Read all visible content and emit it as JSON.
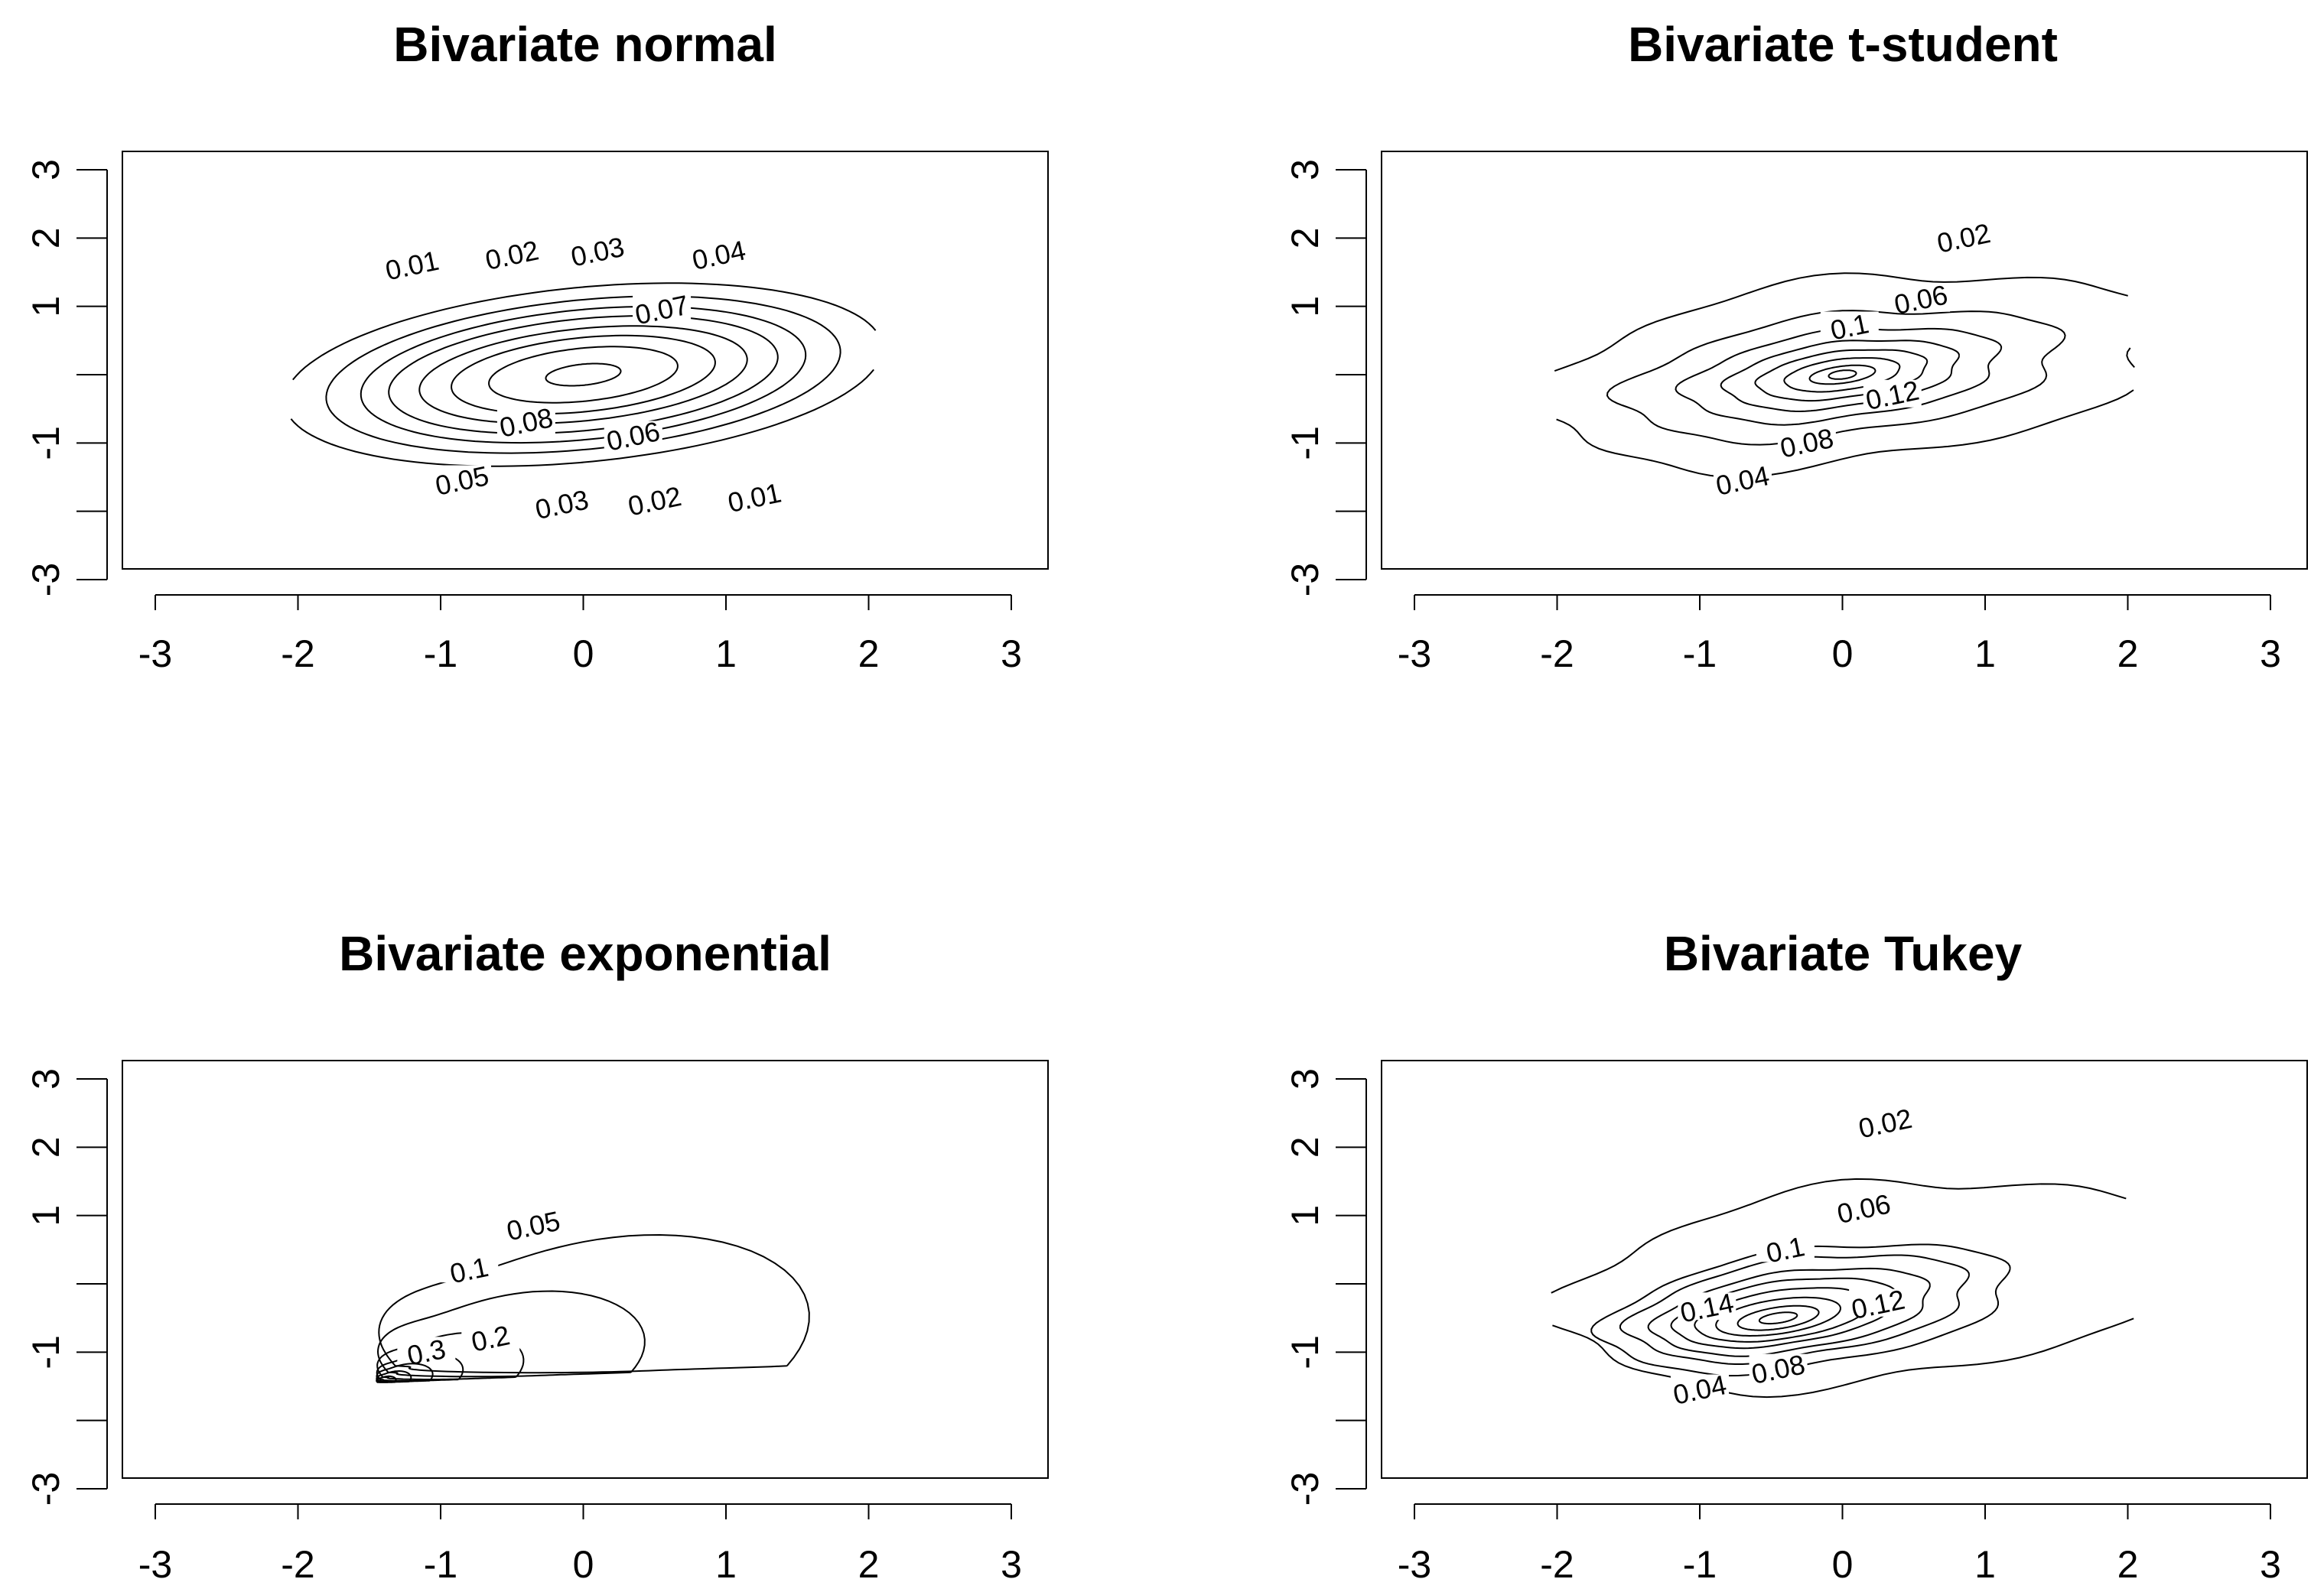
{
  "chart_data": [
    {
      "type": "contour",
      "title": "Bivariate normal",
      "xlim": [
        -3,
        3
      ],
      "ylim": [
        -3,
        3
      ],
      "xticks": [
        -3,
        -2,
        -1,
        0,
        1,
        2,
        3
      ],
      "xtick_labels": [
        "-3",
        "-2",
        "-1",
        "0",
        "1",
        "2",
        "3"
      ],
      "yticks": [
        -3,
        -2,
        -1,
        0,
        1,
        2,
        3
      ],
      "ytick_labels": [
        "-3",
        "",
        "-1",
        "",
        "1",
        "2",
        "3"
      ],
      "contours": [
        {
          "level": "0.01",
          "cx": 0.0,
          "cy": 0.0,
          "rx": 2.15,
          "ry": 1.25,
          "tilt": 0.28,
          "label_x": -1.2,
          "label_y": 1.6
        },
        {
          "level": "0.02",
          "cx": 0.0,
          "cy": 0.0,
          "rx": 1.85,
          "ry": 1.07,
          "tilt": 0.28,
          "label_x": -0.5,
          "label_y": 1.75
        },
        {
          "level": "0.03",
          "cx": 0.0,
          "cy": 0.0,
          "rx": 1.6,
          "ry": 0.93,
          "tilt": 0.28,
          "label_x": 0.1,
          "label_y": 1.8
        },
        {
          "level": "0.04",
          "cx": 0.0,
          "cy": 0.0,
          "rx": 1.4,
          "ry": 0.8,
          "tilt": 0.28,
          "label_x": 0.95,
          "label_y": 1.75
        },
        {
          "level": "0.05",
          "cx": 0.0,
          "cy": 0.0,
          "rx": 1.18,
          "ry": 0.66,
          "tilt": 0.28,
          "label_x": -0.85,
          "label_y": -1.55
        },
        {
          "level": "0.06",
          "cx": 0.0,
          "cy": 0.0,
          "rx": 0.95,
          "ry": 0.53,
          "tilt": 0.28,
          "label_x": 0.35,
          "label_y": -0.9
        },
        {
          "level": "0.07",
          "cx": 0.0,
          "cy": 0.0,
          "rx": 0.68,
          "ry": 0.38,
          "tilt": 0.28,
          "label_x": 0.55,
          "label_y": 0.95
        },
        {
          "level": "0.08",
          "cx": 0.0,
          "cy": 0.0,
          "rx": 0.27,
          "ry": 0.15,
          "tilt": 0.28,
          "label_x": -0.4,
          "label_y": -0.7
        }
      ],
      "extra_labels": [
        {
          "text": "0.03",
          "x": -0.15,
          "y": -1.9
        },
        {
          "text": "0.02",
          "x": 0.5,
          "y": -1.85
        },
        {
          "text": "0.01",
          "x": 1.2,
          "y": -1.8
        }
      ]
    },
    {
      "type": "contour",
      "title": "Bivariate t-student",
      "xlim": [
        -3,
        3
      ],
      "ylim": [
        -3,
        3
      ],
      "xticks": [
        -3,
        -2,
        -1,
        0,
        1,
        2,
        3
      ],
      "xtick_labels": [
        "-3",
        "-2",
        "-1",
        "0",
        "1",
        "2",
        "3"
      ],
      "yticks": [
        -3,
        -2,
        -1,
        0,
        1,
        2,
        3
      ],
      "ytick_labels": [
        "-3",
        "",
        "-1",
        "",
        "1",
        "2",
        "3"
      ],
      "contours": [
        {
          "level": "0.02",
          "cx": 0.05,
          "cy": 0.05,
          "rx": 2.25,
          "ry": 1.3,
          "tilt": 0.33,
          "wobble": 0.06,
          "label_x": 0.85,
          "label_y": 2.0
        },
        {
          "level": "0.04",
          "cx": 0.0,
          "cy": 0.0,
          "rx": 1.6,
          "ry": 0.85,
          "tilt": 0.33,
          "wobble": 0.05,
          "label_x": -0.7,
          "label_y": -1.55
        },
        {
          "level": "0.06",
          "cx": 0.0,
          "cy": 0.0,
          "rx": 1.15,
          "ry": 0.62,
          "tilt": 0.33,
          "wobble": 0.04,
          "label_x": 0.55,
          "label_y": 1.1
        },
        {
          "level": "0.08",
          "cx": 0.0,
          "cy": 0.0,
          "rx": 0.85,
          "ry": 0.46,
          "tilt": 0.33,
          "wobble": 0.03,
          "label_x": -0.25,
          "label_y": -1.0
        },
        {
          "level": "0.1",
          "cx": 0.0,
          "cy": 0.0,
          "rx": 0.62,
          "ry": 0.33,
          "tilt": 0.33,
          "wobble": 0.02,
          "label_x": 0.05,
          "label_y": 0.7
        },
        {
          "level": "0.12",
          "cx": 0.0,
          "cy": 0.0,
          "rx": 0.42,
          "ry": 0.22,
          "tilt": 0.33,
          "wobble": 0.01,
          "label_x": 0.35,
          "label_y": -0.3
        },
        {
          "level": "",
          "cx": 0.0,
          "cy": 0.0,
          "rx": 0.24,
          "ry": 0.12,
          "tilt": 0.33,
          "wobble": 0.0,
          "label_x": null,
          "label_y": null
        },
        {
          "level": "",
          "cx": 0.0,
          "cy": 0.0,
          "rx": 0.1,
          "ry": 0.06,
          "tilt": 0.33,
          "wobble": 0.0,
          "label_x": null,
          "label_y": null
        }
      ],
      "extra_labels": []
    },
    {
      "type": "contour",
      "title": "Bivariate exponential",
      "xlim": [
        -3,
        3
      ],
      "ylim": [
        -3,
        3
      ],
      "xticks": [
        -3,
        -2,
        -1,
        0,
        1,
        2,
        3
      ],
      "xtick_labels": [
        "-3",
        "-2",
        "-1",
        "0",
        "1",
        "2",
        "3"
      ],
      "yticks": [
        -3,
        -2,
        -1,
        0,
        1,
        2,
        3
      ],
      "ytick_labels": [
        "-3",
        "",
        "-1",
        "",
        "1",
        "2",
        "3"
      ],
      "contours": [
        {
          "level": "0.05",
          "kind": "expo",
          "scale": 1.0,
          "label_x": -0.35,
          "label_y": 0.85
        },
        {
          "level": "0.1",
          "kind": "expo",
          "scale": 0.62,
          "label_x": -0.8,
          "label_y": 0.2
        },
        {
          "level": "0.2",
          "kind": "expo",
          "scale": 0.34,
          "label_x": -0.65,
          "label_y": -0.8
        },
        {
          "level": "0.3",
          "kind": "expo",
          "scale": 0.2,
          "label_x": -1.1,
          "label_y": -1.0
        },
        {
          "level": "",
          "kind": "expo",
          "scale": 0.13,
          "label_x": null,
          "label_y": null
        },
        {
          "level": "",
          "kind": "expo",
          "scale": 0.08,
          "label_x": null,
          "label_y": null
        },
        {
          "level": "",
          "kind": "expo",
          "scale": 0.045,
          "label_x": null,
          "label_y": null
        }
      ],
      "extra_labels": []
    },
    {
      "type": "contour",
      "title": "Bivariate Tukey",
      "xlim": [
        -3,
        3
      ],
      "ylim": [
        -3,
        3
      ],
      "xticks": [
        -3,
        -2,
        -1,
        0,
        1,
        2,
        3
      ],
      "xtick_labels": [
        "-3",
        "-2",
        "-1",
        "0",
        "1",
        "2",
        "3"
      ],
      "yticks": [
        -3,
        -2,
        -1,
        0,
        1,
        2,
        3
      ],
      "ytick_labels": [
        "-3",
        "",
        "-1",
        "",
        "1",
        "2",
        "3"
      ],
      "contours": [
        {
          "level": "0.02",
          "cx": 0.2,
          "cy": 0.0,
          "rx": 2.25,
          "ry": 1.4,
          "tilt": 0.35,
          "wobble": 0.06,
          "label_x": 0.3,
          "label_y": 2.35
        },
        {
          "level": "0.04",
          "cx": -0.25,
          "cy": -0.35,
          "rx": 1.5,
          "ry": 0.82,
          "tilt": 0.38,
          "wobble": 0.04,
          "label_x": -1.0,
          "label_y": -1.55
        },
        {
          "level": "0.06",
          "cx": -0.3,
          "cy": -0.35,
          "rx": 1.25,
          "ry": 0.68,
          "tilt": 0.38,
          "wobble": 0.04,
          "label_x": 0.15,
          "label_y": 1.1
        },
        {
          "level": "0.08",
          "cx": -0.35,
          "cy": -0.4,
          "rx": 1.02,
          "ry": 0.55,
          "tilt": 0.38,
          "wobble": 0.03,
          "label_x": -0.45,
          "label_y": -1.25
        },
        {
          "level": "0.1",
          "cx": -0.4,
          "cy": -0.42,
          "rx": 0.82,
          "ry": 0.44,
          "tilt": 0.38,
          "wobble": 0.02,
          "label_x": -0.4,
          "label_y": 0.5
        },
        {
          "level": "0.12",
          "cx": -0.42,
          "cy": -0.45,
          "rx": 0.64,
          "ry": 0.34,
          "tilt": 0.38,
          "wobble": 0.01,
          "label_x": 0.25,
          "label_y": -0.3
        },
        {
          "level": "0.14",
          "cx": -0.45,
          "cy": -0.48,
          "rx": 0.46,
          "ry": 0.24,
          "tilt": 0.38,
          "wobble": 0.0,
          "label_x": -0.95,
          "label_y": -0.35
        },
        {
          "level": "",
          "cx": -0.45,
          "cy": -0.5,
          "rx": 0.3,
          "ry": 0.15,
          "tilt": 0.38,
          "wobble": 0.0,
          "label_x": null,
          "label_y": null
        },
        {
          "level": "",
          "cx": -0.45,
          "cy": -0.5,
          "rx": 0.14,
          "ry": 0.07,
          "tilt": 0.38,
          "wobble": 0.0,
          "label_x": null,
          "label_y": null
        }
      ],
      "extra_labels": []
    }
  ]
}
